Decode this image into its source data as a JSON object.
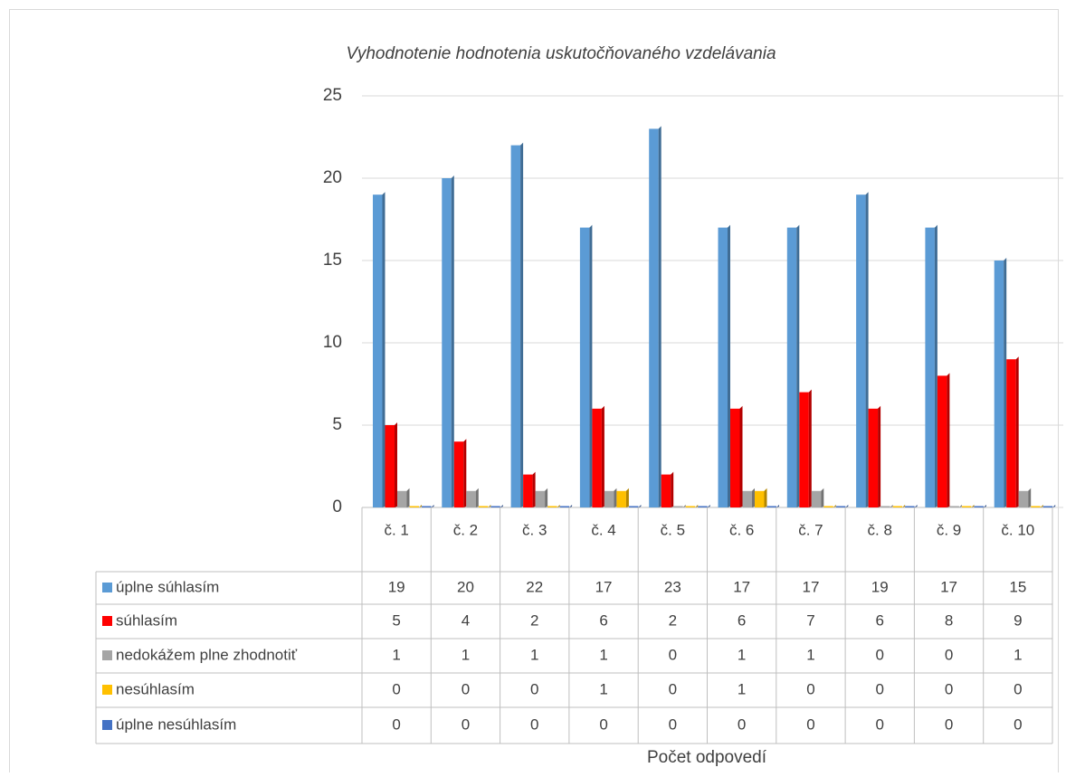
{
  "chart_data": {
    "type": "bar",
    "title": "Vyhodnotenie hodnotenia uskutočňovaného vzdelávania",
    "x_label": "Počet odpovedí",
    "categories": [
      "č. 1",
      "č. 2",
      "č. 3",
      "č. 4",
      "č. 5",
      "č. 6",
      "č. 7",
      "č. 8",
      "č. 9",
      "č. 10"
    ],
    "series": [
      {
        "name": "úplne súhlasím",
        "color": "#5b9bd5",
        "values": [
          19,
          20,
          22,
          17,
          23,
          17,
          17,
          19,
          17,
          15
        ]
      },
      {
        "name": "súhlasím",
        "color": "#ff0000",
        "values": [
          5,
          4,
          2,
          6,
          2,
          6,
          7,
          6,
          8,
          9
        ]
      },
      {
        "name": "nedokážem plne zhodnotiť",
        "color": "#a5a5a5",
        "values": [
          1,
          1,
          1,
          1,
          0,
          1,
          1,
          0,
          0,
          1
        ]
      },
      {
        "name": "nesúhlasím",
        "color": "#ffc000",
        "values": [
          0,
          0,
          0,
          1,
          0,
          1,
          0,
          0,
          0,
          0
        ]
      },
      {
        "name": "úplne nesúhlasím",
        "color": "#4472c4",
        "values": [
          0,
          0,
          0,
          0,
          0,
          0,
          0,
          0,
          0,
          0
        ]
      }
    ],
    "ylim": [
      0,
      25
    ],
    "yticks": [
      0,
      5,
      10,
      15,
      20,
      25
    ],
    "grid": true,
    "legend": "table"
  }
}
